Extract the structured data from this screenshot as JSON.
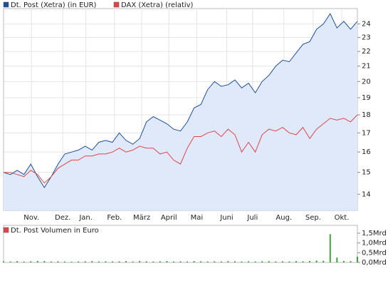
{
  "chart_data": [
    {
      "type": "line",
      "log_y": true,
      "grid": true,
      "xlim": [
        0,
        52
      ],
      "xticks": [
        {
          "value": 4.1,
          "label": "Nov."
        },
        {
          "value": 8.7,
          "label": "Dez."
        },
        {
          "value": 12.1,
          "label": "Jan."
        },
        {
          "value": 16.3,
          "label": "Feb."
        },
        {
          "value": 20.3,
          "label": "März"
        },
        {
          "value": 24.3,
          "label": "April"
        },
        {
          "value": 28.4,
          "label": "Mai"
        },
        {
          "value": 32.8,
          "label": "Juni"
        },
        {
          "value": 36.6,
          "label": "Juli"
        },
        {
          "value": 41.2,
          "label": "Aug."
        },
        {
          "value": 45.5,
          "label": "Sep."
        },
        {
          "value": 49.7,
          "label": "Okt."
        }
      ],
      "ylim": [
        13.3,
        25.2
      ],
      "yticks": [
        14,
        15,
        16,
        17,
        18,
        19,
        20,
        21,
        22,
        23,
        24
      ],
      "series": [
        {
          "name": "Dt. Post (Xetra) (in EUR)",
          "color": "#1f4e9c",
          "area_color": "#dfe9f9",
          "values": [
            15.0,
            14.9,
            15.1,
            14.9,
            15.4,
            14.8,
            14.3,
            14.8,
            15.4,
            15.9,
            16.0,
            16.1,
            16.3,
            16.1,
            16.5,
            16.6,
            16.5,
            17.0,
            16.6,
            16.4,
            16.7,
            17.6,
            17.9,
            17.7,
            17.5,
            17.2,
            17.1,
            17.6,
            18.4,
            18.6,
            19.5,
            20.0,
            19.7,
            19.8,
            20.1,
            19.6,
            19.9,
            19.3,
            20.0,
            20.4,
            21.0,
            21.4,
            21.3,
            21.9,
            22.5,
            22.7,
            23.6,
            24.0,
            24.8,
            23.7,
            24.2,
            23.6,
            24.2
          ]
        },
        {
          "name": "DAX (Xetra) (relativ)",
          "color": "#e0454a",
          "values": [
            15.0,
            15.0,
            14.9,
            14.8,
            15.1,
            14.9,
            14.5,
            14.8,
            15.2,
            15.4,
            15.6,
            15.6,
            15.8,
            15.8,
            15.9,
            15.9,
            16.0,
            16.2,
            16.0,
            16.1,
            16.3,
            16.2,
            16.2,
            15.9,
            16.0,
            15.6,
            15.4,
            16.2,
            16.8,
            16.8,
            17.0,
            17.1,
            16.8,
            17.2,
            16.9,
            16.0,
            16.5,
            16.0,
            16.9,
            17.2,
            17.1,
            17.3,
            17.0,
            16.9,
            17.3,
            16.7,
            17.2,
            17.5,
            17.8,
            17.7,
            17.8,
            17.6,
            18.0
          ]
        }
      ]
    },
    {
      "type": "bar",
      "xlim": [
        0,
        52
      ],
      "ylim": [
        0,
        1.5
      ],
      "yticks": [
        {
          "value": 0,
          "label": "0,0Mrd"
        },
        {
          "value": 0.5,
          "label": "0,5Mrd"
        },
        {
          "value": 1,
          "label": "1,0Mrd"
        },
        {
          "value": 1.5,
          "label": "1,5Mrd"
        }
      ],
      "series": [
        {
          "name": "Dt. Post Volumen in Euro",
          "color": "#e0454a",
          "bar_color": "#3aa53a",
          "values": [
            0.06,
            0.05,
            0.07,
            0.05,
            0.06,
            0.08,
            0.07,
            0.05,
            0.06,
            0.05,
            0.04,
            0.05,
            0.06,
            0.07,
            0.05,
            0.06,
            0.05,
            0.06,
            0.07,
            0.05,
            0.08,
            0.06,
            0.05,
            0.06,
            0.07,
            0.05,
            0.06,
            0.05,
            0.07,
            0.06,
            0.05,
            0.06,
            0.05,
            0.07,
            0.06,
            0.05,
            0.06,
            0.05,
            0.06,
            0.07,
            0.05,
            0.06,
            0.05,
            0.07,
            0.06,
            0.08,
            0.1,
            0.09,
            1.45,
            0.25,
            0.08,
            0.07,
            0.3
          ]
        }
      ]
    }
  ]
}
